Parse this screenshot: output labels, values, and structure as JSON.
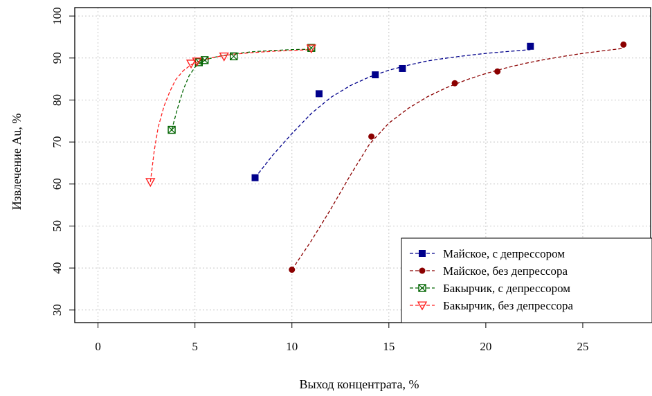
{
  "chart_data": {
    "type": "scatter",
    "title": "",
    "xlabel": "Выход концентрата, %",
    "ylabel": "Извлечение Au, %",
    "xlim": [
      -1.2,
      28.5
    ],
    "ylim": [
      27,
      102
    ],
    "xticks": [
      0,
      5,
      10,
      15,
      20,
      25
    ],
    "yticks": [
      30,
      40,
      50,
      60,
      70,
      80,
      90,
      100
    ],
    "grid": true,
    "legend_position": "bottom-right",
    "series": [
      {
        "name": "Майское, с депрессором",
        "color": "#00008b",
        "marker": "square",
        "x": [
          8.1,
          11.4,
          14.3,
          15.7,
          22.3
        ],
        "y": [
          61.5,
          81.5,
          86.0,
          87.5,
          92.8
        ],
        "fit": {
          "x": [
            8.1,
            9,
            10,
            11,
            12,
            13,
            14,
            15,
            16,
            17,
            18,
            19,
            20,
            21,
            22.3
          ],
          "y": [
            61.5,
            66.8,
            72.0,
            76.8,
            80.6,
            83.4,
            85.5,
            87.1,
            88.3,
            89.3,
            90.0,
            90.6,
            91.1,
            91.5,
            92.0
          ]
        }
      },
      {
        "name": "Майское, без депрессора",
        "color": "#8b0000",
        "marker": "circle",
        "x": [
          10.0,
          14.1,
          18.4,
          20.6,
          27.1
        ],
        "y": [
          39.6,
          71.3,
          84.0,
          86.8,
          93.2
        ],
        "fit": {
          "x": [
            10.0,
            11,
            12,
            13,
            14,
            15,
            16,
            17,
            18,
            19,
            20,
            21,
            22,
            23,
            24,
            25,
            26,
            27.1
          ],
          "y": [
            39.6,
            46.5,
            54.0,
            62.0,
            69.5,
            74.5,
            78.0,
            80.8,
            83.0,
            84.8,
            86.3,
            87.6,
            88.7,
            89.6,
            90.4,
            91.1,
            91.7,
            92.3
          ]
        }
      },
      {
        "name": "Бакырчик, с депрессором",
        "color": "#006400",
        "marker": "boxed-x",
        "x": [
          3.8,
          5.2,
          5.5,
          7.0,
          11.0
        ],
        "y": [
          72.9,
          89.0,
          89.5,
          90.4,
          92.4
        ],
        "fit": {
          "x": [
            3.8,
            4.1,
            4.4,
            4.7,
            5.0,
            5.3,
            5.7,
            6.2,
            7.0,
            8.0,
            9.0,
            10.0,
            11.0
          ],
          "y": [
            72.9,
            78.0,
            82.5,
            85.8,
            87.8,
            89.0,
            89.8,
            90.4,
            91.0,
            91.5,
            91.8,
            92.0,
            92.1
          ]
        }
      },
      {
        "name": "Бакырчик, без депрессора",
        "color": "#ff2020",
        "marker": "triangle-down",
        "x": [
          2.7,
          4.8,
          5.1,
          6.5,
          11.0
        ],
        "y": [
          60.5,
          88.7,
          89.2,
          90.4,
          92.3
        ],
        "fit": {
          "x": [
            2.7,
            2.9,
            3.1,
            3.4,
            3.7,
            4.0,
            4.4,
            4.8,
            5.3,
            6.0,
            7.0,
            8.0,
            9.0,
            10.0,
            11.0
          ],
          "y": [
            60.5,
            68.0,
            73.5,
            78.5,
            82.0,
            84.8,
            87.0,
            88.4,
            89.4,
            90.2,
            90.9,
            91.3,
            91.6,
            91.8,
            92.0
          ]
        }
      }
    ]
  }
}
